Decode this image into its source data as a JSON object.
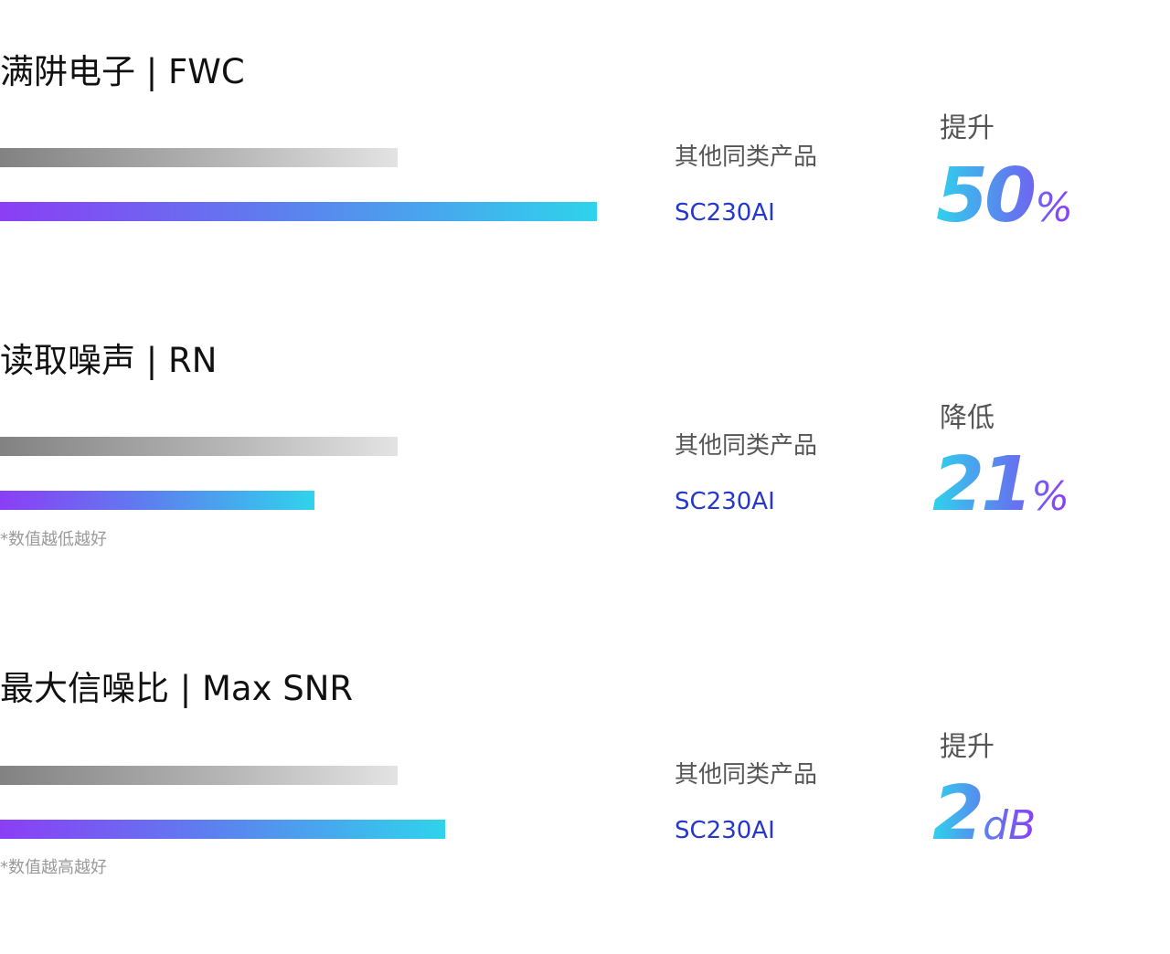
{
  "colors": {
    "other_bar_start": "#828282",
    "other_bar_end": "#e3e3e3",
    "sc_bar_start": "#8b3ef5",
    "sc_bar_end": "#2fd3ec",
    "sc_label": "#2638c9"
  },
  "chart_data": [
    {
      "type": "bar",
      "orientation": "horizontal",
      "title": "满阱电子 | FWC",
      "categories": [
        "其他同类产品",
        "SC230AI"
      ],
      "values": [
        1.0,
        1.5
      ],
      "change_label": "提升",
      "change_value": "50",
      "change_unit": "%",
      "note": ""
    },
    {
      "type": "bar",
      "orientation": "horizontal",
      "title": "读取噪声 | RN",
      "categories": [
        "其他同类产品",
        "SC230AI"
      ],
      "values": [
        1.0,
        0.79
      ],
      "change_label": "降低",
      "change_value": "21",
      "change_unit": "%",
      "note": "*数值越低越好"
    },
    {
      "type": "bar",
      "orientation": "horizontal",
      "title": "最大信噪比 | Max SNR",
      "categories": [
        "其他同类产品",
        "SC230AI"
      ],
      "values": [
        1.0,
        1.12
      ],
      "change_label": "提升",
      "change_value": "2",
      "change_unit": "dB",
      "note": "*数值越高越好"
    }
  ]
}
